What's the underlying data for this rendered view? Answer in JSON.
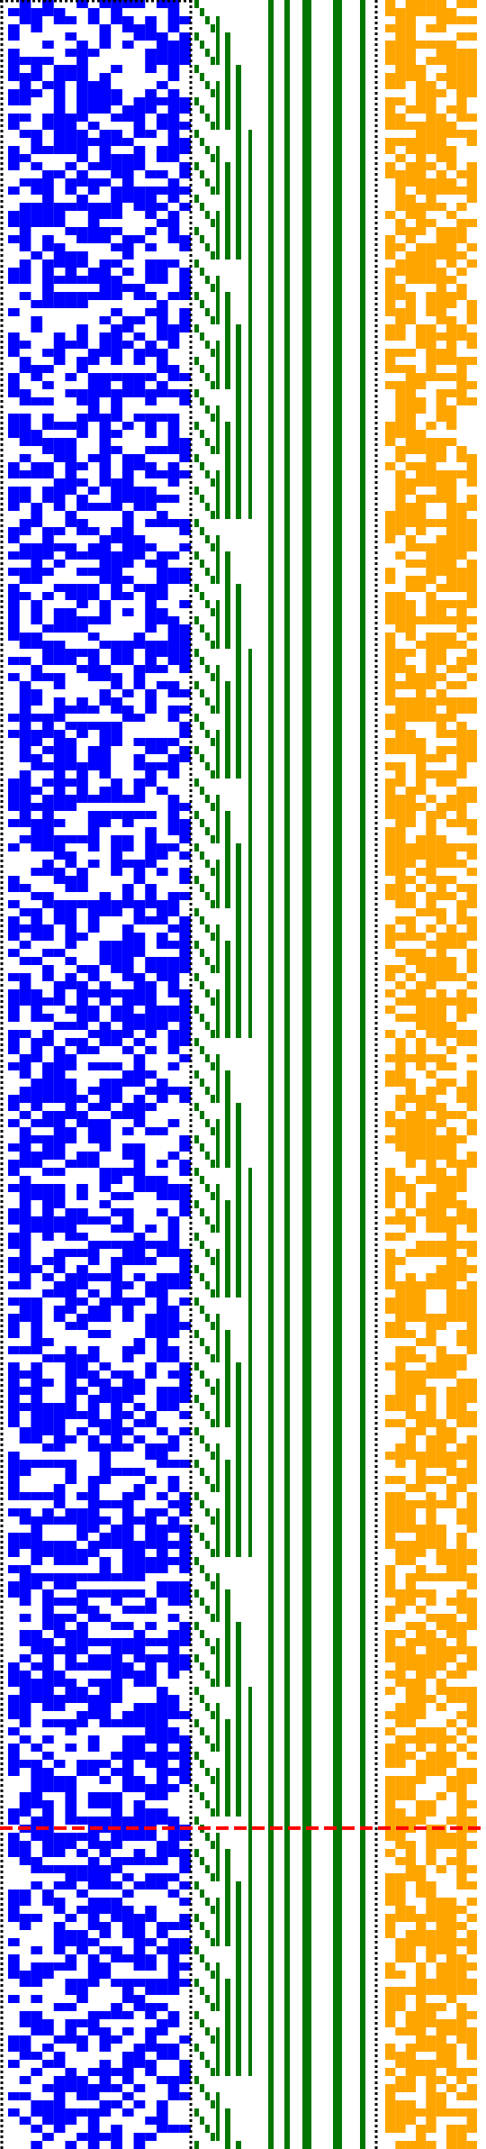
{
  "colors": {
    "background": "#ffffff",
    "left_region": "#0000ff",
    "middle_region": "#007700",
    "right_region": "#ffa500",
    "separator": "#000000",
    "marker_line": "#ff0000"
  },
  "regions": {
    "separators": 3,
    "bit_columns_left": 16,
    "bit_columns_right": 9,
    "rows": 265
  },
  "marker_line": {
    "row_fraction": 0.8507
  }
}
